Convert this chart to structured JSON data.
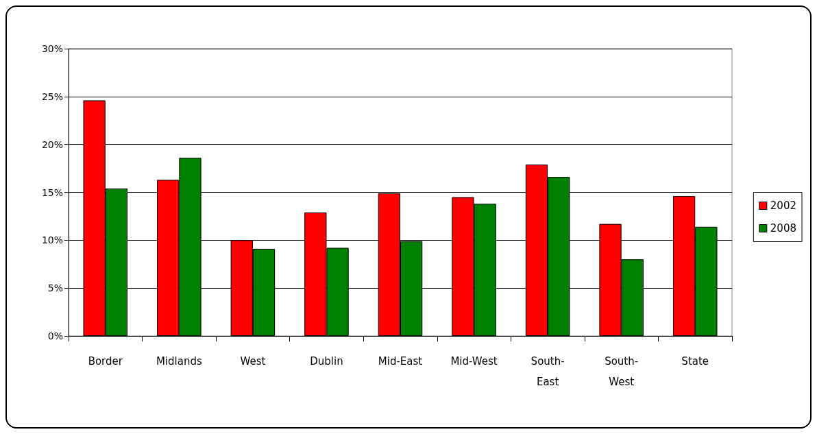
{
  "chart_data": {
    "type": "bar",
    "categories": [
      "Border",
      "Midlands",
      "West",
      "Dublin",
      "Mid-East",
      "Mid-West",
      "South-East",
      "South-West",
      "State"
    ],
    "series": [
      {
        "name": "2002",
        "color": "#ff0000",
        "values": [
          24.6,
          16.3,
          10.0,
          12.9,
          14.9,
          14.5,
          17.9,
          11.7,
          14.6
        ]
      },
      {
        "name": "2008",
        "color": "#008000",
        "values": [
          15.4,
          18.6,
          9.1,
          9.2,
          9.9,
          13.8,
          16.6,
          8.0,
          11.4
        ]
      }
    ],
    "ylim": [
      0,
      30
    ],
    "yticks": [
      {
        "value": 0,
        "label": "0%"
      },
      {
        "value": 5,
        "label": "5%"
      },
      {
        "value": 10,
        "label": "10%"
      },
      {
        "value": 15,
        "label": "15%"
      },
      {
        "value": 20,
        "label": "20%"
      },
      {
        "value": 25,
        "label": "25%"
      },
      {
        "value": 30,
        "label": "30%"
      }
    ],
    "grid": "y",
    "legend": "right"
  }
}
